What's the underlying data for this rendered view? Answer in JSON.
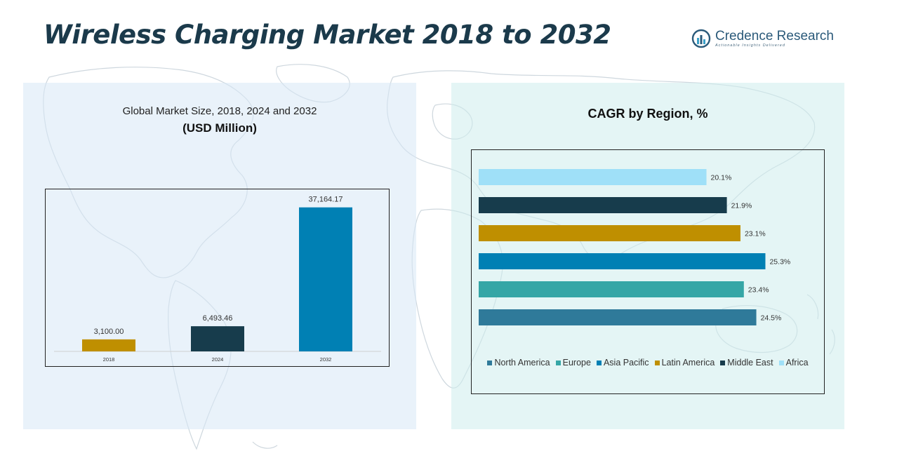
{
  "header": {
    "title": "Wireless Charging Market 2018 to 2032",
    "brand_name": "Credence Research",
    "brand_tagline": "Actionable Insights Delivered"
  },
  "left_panel": {
    "subtitle": "Global Market Size, 2018, 2024 and 2032",
    "unit": "(USD Million)"
  },
  "right_panel": {
    "title": "CAGR by Region, %"
  },
  "chart_data": [
    {
      "type": "bar",
      "title": "Global Market Size, 2018, 2024 and 2032",
      "ylabel": "",
      "xlabel": "",
      "categories": [
        "2018",
        "2024",
        "2032"
      ],
      "values": [
        3100.0,
        6493.46,
        37164.17
      ],
      "value_labels": [
        "3,100.00",
        "6,493.46",
        "37,164.17"
      ],
      "colors": [
        "#bf8f00",
        "#173c4c",
        "#0080b4"
      ],
      "ylim": [
        0,
        40000
      ],
      "grid": false
    },
    {
      "type": "bar",
      "orientation": "horizontal",
      "title": "CAGR by Region, %",
      "categories": [
        "North America",
        "Europe",
        "Asia Pacific",
        "Latin America",
        "Middle East",
        "Africa"
      ],
      "values": [
        24.5,
        23.4,
        25.3,
        23.1,
        21.9,
        20.1
      ],
      "value_labels": [
        "24.5%",
        "23.4%",
        "25.3%",
        "23.1%",
        "21.9%",
        "20.1%"
      ],
      "colors": [
        "#2f7a9a",
        "#35a6a6",
        "#0080b4",
        "#bf8f00",
        "#173c4c",
        "#9fe0f8"
      ],
      "xlim": [
        0,
        27.5
      ],
      "legend_position": "bottom",
      "grid": false
    }
  ]
}
